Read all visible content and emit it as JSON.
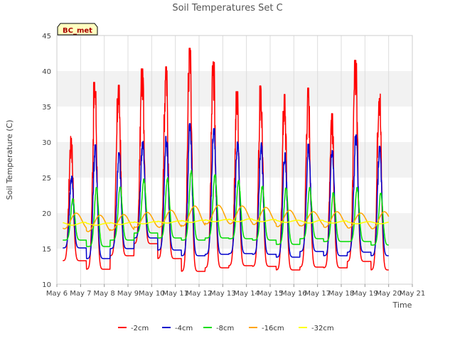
{
  "chart_data": {
    "type": "line",
    "title": "Soil Temperatures Set C",
    "xlabel": "Time",
    "ylabel": "Soil Temperature (C)",
    "badge": "BC_met",
    "ylim": [
      10,
      45
    ],
    "yticks": [
      10,
      15,
      20,
      25,
      30,
      35,
      40,
      45
    ],
    "xlim": [
      6,
      21
    ],
    "xticks": [
      6,
      7,
      8,
      9,
      10,
      11,
      12,
      13,
      14,
      15,
      16,
      17,
      18,
      19,
      20,
      21
    ],
    "xtick_labels": [
      "May 6",
      "May 7",
      "May 8",
      "May 9",
      "May 10",
      "May 11",
      "May 12",
      "May 13",
      "May 14",
      "May 15",
      "May 16",
      "May 17",
      "May 18",
      "May 19",
      "May 20",
      "May 21"
    ],
    "x_start": 6.25,
    "x_end": 20.0,
    "grid": "horizontal bands",
    "legend_position": "bottom-center",
    "series": [
      {
        "name": "-2cm",
        "color": "#ff0000",
        "daily_max": [
          30.8,
          38.4,
          38.0,
          40.3,
          40.6,
          43.2,
          41.3,
          37.1,
          37.9,
          36.7,
          37.6,
          34.0,
          41.5,
          38.2
        ],
        "daily_min": [
          13.3,
          12.1,
          14.0,
          15.7,
          13.6,
          11.8,
          12.3,
          12.6,
          12.5,
          12.0,
          12.4,
          12.3,
          13.2,
          12.0
        ],
        "phase": 0.6,
        "spikiness": 1.0
      },
      {
        "name": "-4cm",
        "color": "#0000cc",
        "daily_max": [
          25.2,
          29.6,
          28.5,
          30.1,
          30.8,
          32.6,
          31.9,
          30.0,
          29.9,
          28.5,
          29.7,
          29.4,
          31.0,
          29.4
        ],
        "daily_min": [
          15.1,
          13.6,
          15.0,
          16.5,
          14.8,
          14.0,
          14.2,
          14.3,
          14.2,
          13.8,
          14.6,
          14.0,
          14.5,
          14.0
        ],
        "phase": 0.62,
        "spikiness": 0.6
      },
      {
        "name": "-8cm",
        "color": "#00dd00",
        "daily_max": [
          22.0,
          23.6,
          23.8,
          24.8,
          25.0,
          26.0,
          25.4,
          24.6,
          23.8,
          23.6,
          23.6,
          23.0,
          23.6,
          22.8
        ],
        "daily_min": [
          16.2,
          15.3,
          16.2,
          17.2,
          16.5,
          16.2,
          16.5,
          16.4,
          16.2,
          15.6,
          16.4,
          16.0,
          16.0,
          15.5
        ],
        "phase": 0.67,
        "spikiness": 0.2
      },
      {
        "name": "-16cm",
        "color": "#ffa500",
        "daily_max": [
          20.0,
          19.7,
          19.8,
          20.1,
          20.4,
          21.0,
          21.1,
          21.0,
          20.8,
          20.4,
          20.2,
          20.2,
          20.0,
          20.2
        ],
        "daily_min": [
          17.8,
          17.4,
          17.6,
          18.0,
          18.0,
          18.2,
          18.5,
          18.5,
          18.4,
          18.1,
          18.2,
          18.0,
          17.9,
          17.8
        ],
        "phase": 0.82,
        "spikiness": 0.0
      },
      {
        "name": "-32cm",
        "color": "#ffff00",
        "daily_max": [
          18.7,
          18.6,
          18.7,
          18.8,
          18.9,
          19.0,
          19.1,
          19.2,
          19.1,
          19.0,
          19.0,
          18.9,
          18.8,
          18.8
        ],
        "daily_min": [
          18.3,
          18.3,
          18.4,
          18.5,
          18.6,
          18.7,
          18.8,
          18.8,
          18.8,
          18.7,
          18.6,
          18.6,
          18.5,
          18.5
        ],
        "phase": 0.0,
        "spikiness": 0.0
      }
    ]
  }
}
